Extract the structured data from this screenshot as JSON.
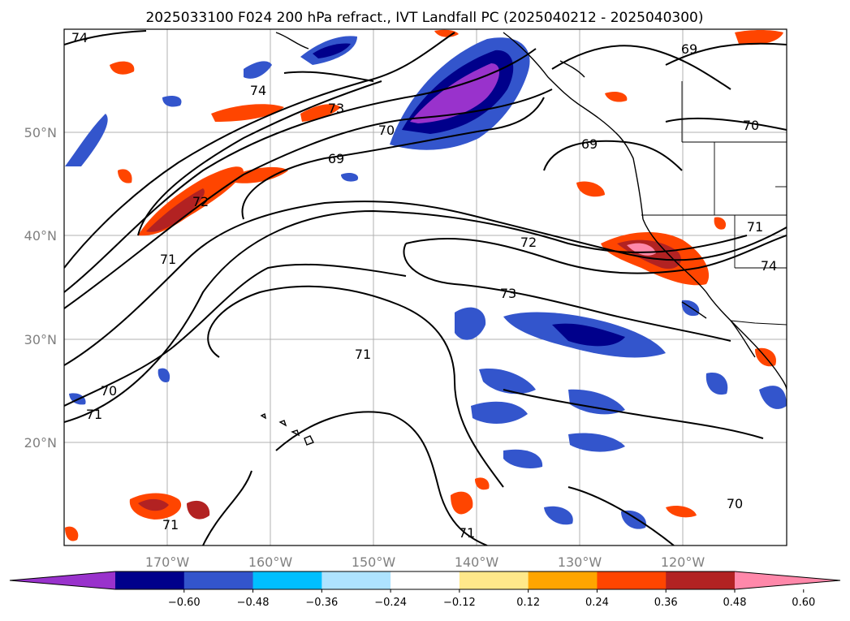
{
  "title": "2025033100 F024 200 hPa refract., IVT Landfall PC (2025040212 - 2025040300)",
  "map": {
    "lat_labels": [
      "50°N",
      "40°N",
      "30°N",
      "20°N"
    ],
    "lon_labels": [
      "170°W",
      "160°W",
      "150°W",
      "140°W",
      "130°W",
      "120°W"
    ],
    "contour_labels": [
      "74",
      "74",
      "73",
      "70",
      "69",
      "69",
      "69",
      "70",
      "72",
      "72",
      "71",
      "73",
      "71",
      "70",
      "71",
      "71",
      "71",
      "70",
      "71",
      "74"
    ]
  },
  "colorbar": {
    "colors": [
      "#9932cc",
      "#00008b",
      "#3355cc",
      "#00bfff",
      "#aee3ff",
      "#ffffff",
      "#ffe88a",
      "#ffa500",
      "#ff4500",
      "#b22222",
      "#ff88aa"
    ],
    "tick_labels": [
      "−0.60",
      "−0.48",
      "−0.36",
      "−0.24",
      "−0.12",
      "0.12",
      "0.24",
      "0.36",
      "0.48",
      "0.60"
    ]
  }
}
